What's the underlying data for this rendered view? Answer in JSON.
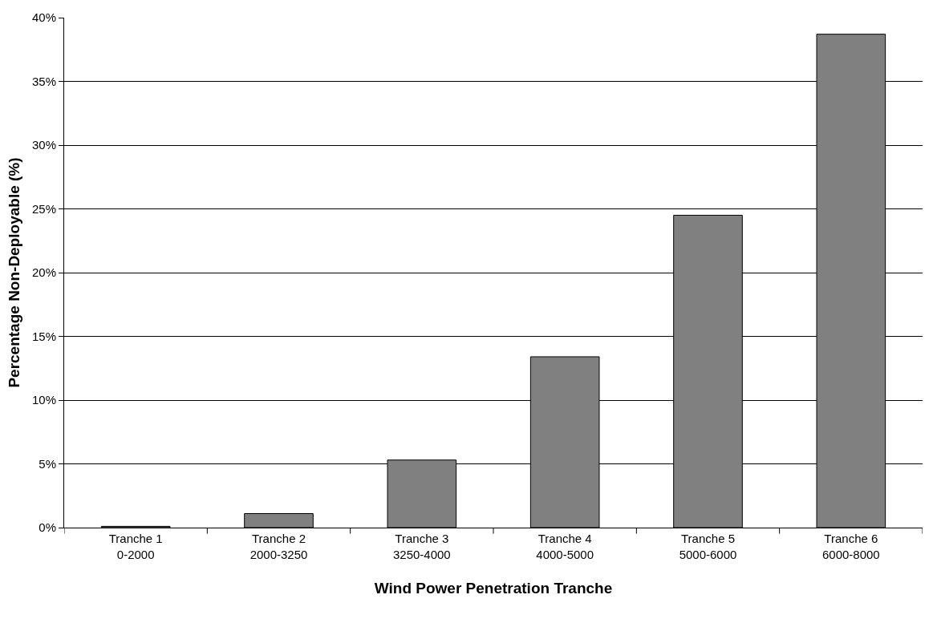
{
  "chart_data": {
    "type": "bar",
    "xlabel": "Wind Power Penetration Tranche",
    "ylabel": "Percentage Non-Deployable (%)",
    "categories": [
      "Tranche 1\n0-2000",
      "Tranche 2\n2000-3250",
      "Tranche 3\n3250-4000",
      "Tranche 4\n4000-5000",
      "Tranche 5\n5000-6000",
      "Tranche 6\n6000-8000"
    ],
    "values": [
      0.1,
      1.1,
      5.3,
      13.4,
      24.5,
      38.7
    ],
    "color": "#808080",
    "ylim": [
      0,
      40
    ],
    "yticks": [
      {
        "value": 0,
        "label": "0%"
      },
      {
        "value": 5,
        "label": "5%"
      },
      {
        "value": 10,
        "label": "10%"
      },
      {
        "value": 15,
        "label": "15%"
      },
      {
        "value": 20,
        "label": "20%"
      },
      {
        "value": 25,
        "label": "25%"
      },
      {
        "value": 30,
        "label": "30%"
      },
      {
        "value": 35,
        "label": "35%"
      },
      {
        "value": 40,
        "label": "40%"
      }
    ],
    "grid": "y"
  }
}
